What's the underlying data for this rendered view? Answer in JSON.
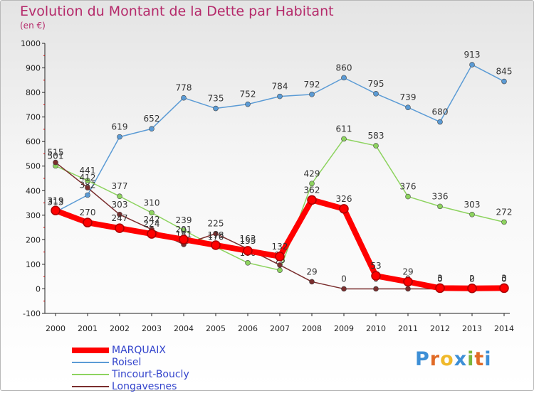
{
  "title": "Evolution du Montant de la Dette par Habitant",
  "unit": "(en €)",
  "logo": {
    "text": [
      "P",
      "r",
      "o",
      "x",
      "i",
      "t",
      "i"
    ],
    "colors": [
      "#3d8fd6",
      "#e06a25",
      "#f0b92a",
      "#3d8fd6",
      "#7bb63b",
      "#e06a25",
      "#3d8fd6"
    ]
  },
  "chart_data": {
    "type": "line",
    "x": [
      "2000",
      "2001",
      "2002",
      "2003",
      "2004",
      "2005",
      "2006",
      "2007",
      "2008",
      "2009",
      "2010",
      "2011",
      "2012",
      "2013",
      "2014"
    ],
    "ylim": [
      -100,
      1000
    ],
    "yticks": [
      "-100",
      "0",
      "100",
      "200",
      "300",
      "400",
      "500",
      "600",
      "700",
      "800",
      "900",
      "1000"
    ],
    "grid": false,
    "legend_position": "bottom-left",
    "series": [
      {
        "name": "Roisel",
        "color": "#5b9bd5",
        "width": 1.5,
        "values": [
          313,
          382,
          619,
          652,
          778,
          735,
          752,
          784,
          792,
          860,
          795,
          739,
          680,
          913,
          845
        ],
        "labels": [
          "313",
          "382",
          "619",
          "652",
          "778",
          "735",
          "752",
          "784",
          "792",
          "860",
          "795",
          "739",
          "680",
          "913",
          "845"
        ]
      },
      {
        "name": "Tincourt-Boucly",
        "color": "#8dd35f",
        "width": 1.5,
        "values": [
          501,
          441,
          377,
          310,
          239,
          170,
          106,
          76,
          429,
          611,
          583,
          376,
          336,
          303,
          272
        ],
        "labels": [
          "501",
          "441",
          "377",
          "310",
          "239",
          "170",
          "106",
          "76",
          "429",
          "611",
          "583",
          "376",
          "336",
          "303",
          "272"
        ]
      },
      {
        "name": "Longavesnes",
        "color": "#7a2e2e",
        "width": 1.5,
        "values": [
          515,
          412,
          303,
          242,
          181,
          225,
          163,
          97,
          29,
          0,
          0,
          0,
          0,
          0,
          0
        ],
        "labels": [
          "515",
          "412",
          "303",
          "242",
          "181",
          "225",
          "163",
          "97",
          "29",
          "0",
          "0",
          "0",
          "0",
          "0",
          "0"
        ]
      },
      {
        "name": "MARQUAIX",
        "color": "#ff0000",
        "width": 8,
        "values": [
          319,
          270,
          247,
          224,
          201,
          178,
          155,
          132,
          362,
          326,
          53,
          29,
          3,
          2,
          3
        ],
        "labels": [
          "319",
          "270",
          "247",
          "224",
          "201",
          "178",
          "155",
          "132",
          "362",
          "326",
          "53",
          "29",
          "3",
          "2",
          "3"
        ]
      }
    ]
  },
  "legend": [
    {
      "name": "MARQUAIX",
      "color": "#ff0000",
      "thickness": 8
    },
    {
      "name": "Roisel",
      "color": "#5b9bd5",
      "thickness": 2
    },
    {
      "name": "Tincourt-Boucly",
      "color": "#8dd35f",
      "thickness": 2
    },
    {
      "name": "Longavesnes",
      "color": "#7a2e2e",
      "thickness": 2
    }
  ]
}
